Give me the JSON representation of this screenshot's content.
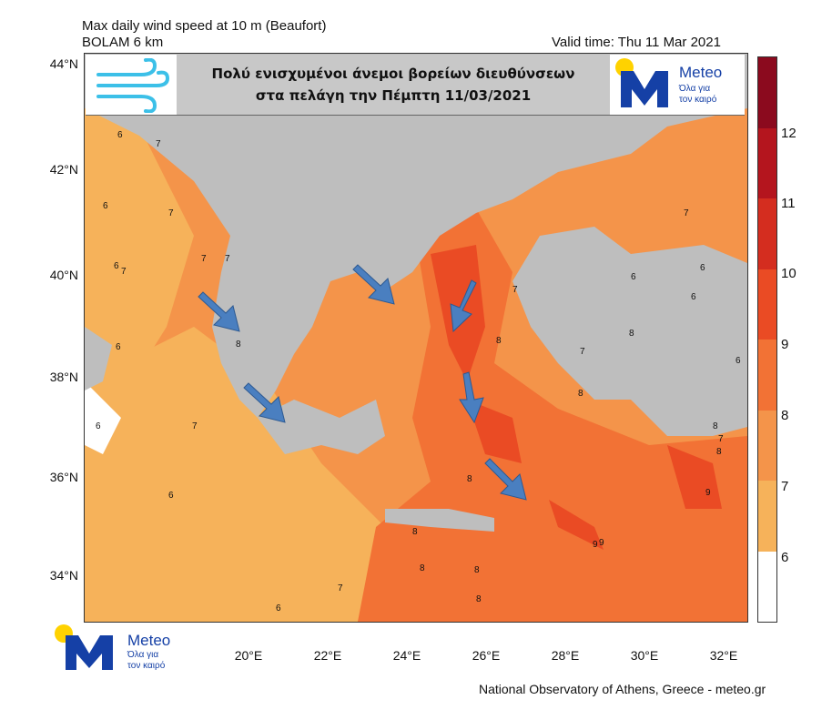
{
  "header": {
    "title_line1": "Max daily wind speed at 10 m (Beaufort)",
    "title_line2": "BOLAM 6 km",
    "valid_time": "Valid time: Thu 11 Mar 2021"
  },
  "banner": {
    "line1": "Πολύ ενισχυμένοι άνεμοι βορείων διευθύνσεων",
    "line2": "στα πελάγη την Πέμπτη 11/03/2021"
  },
  "logo": {
    "name": "Meteo",
    "tagline_line1": "Όλα για",
    "tagline_line2": "τον καιρό"
  },
  "axes": {
    "lat_labels": [
      "44°N",
      "42°N",
      "40°N",
      "38°N",
      "36°N",
      "34°N"
    ],
    "lon_labels": [
      "20°E",
      "22°E",
      "24°E",
      "26°E",
      "28°E",
      "30°E",
      "32°E"
    ]
  },
  "colorbar": {
    "labels": [
      "12",
      "11",
      "10",
      "9",
      "8",
      "7",
      "6"
    ],
    "colors": [
      "#8b0a1e",
      "#b4151e",
      "#d42d1f",
      "#ea4b24",
      "#f27235",
      "#f4944a",
      "#f6b25a",
      "#ffffff"
    ]
  },
  "map_colors": {
    "land": "#bebebe",
    "sea_6": "#f6b25a",
    "sea_7": "#f4944a",
    "sea_8": "#f27235",
    "sea_9": "#ea4b24",
    "arrow": "#4a7fc0"
  },
  "map_numbers": [
    "6",
    "7",
    "6",
    "7",
    "6",
    "7",
    "7",
    "6",
    "7",
    "8",
    "6",
    "7",
    "6",
    "8",
    "7",
    "8",
    "8",
    "8",
    "9",
    "8",
    "8",
    "6",
    "7",
    "6",
    "6",
    "7",
    "6",
    "7",
    "8",
    "9",
    "9",
    "8",
    "8",
    "8",
    "7",
    "6"
  ],
  "footer": {
    "credit": "National Observatory of Athens, Greece - meteo.gr"
  }
}
